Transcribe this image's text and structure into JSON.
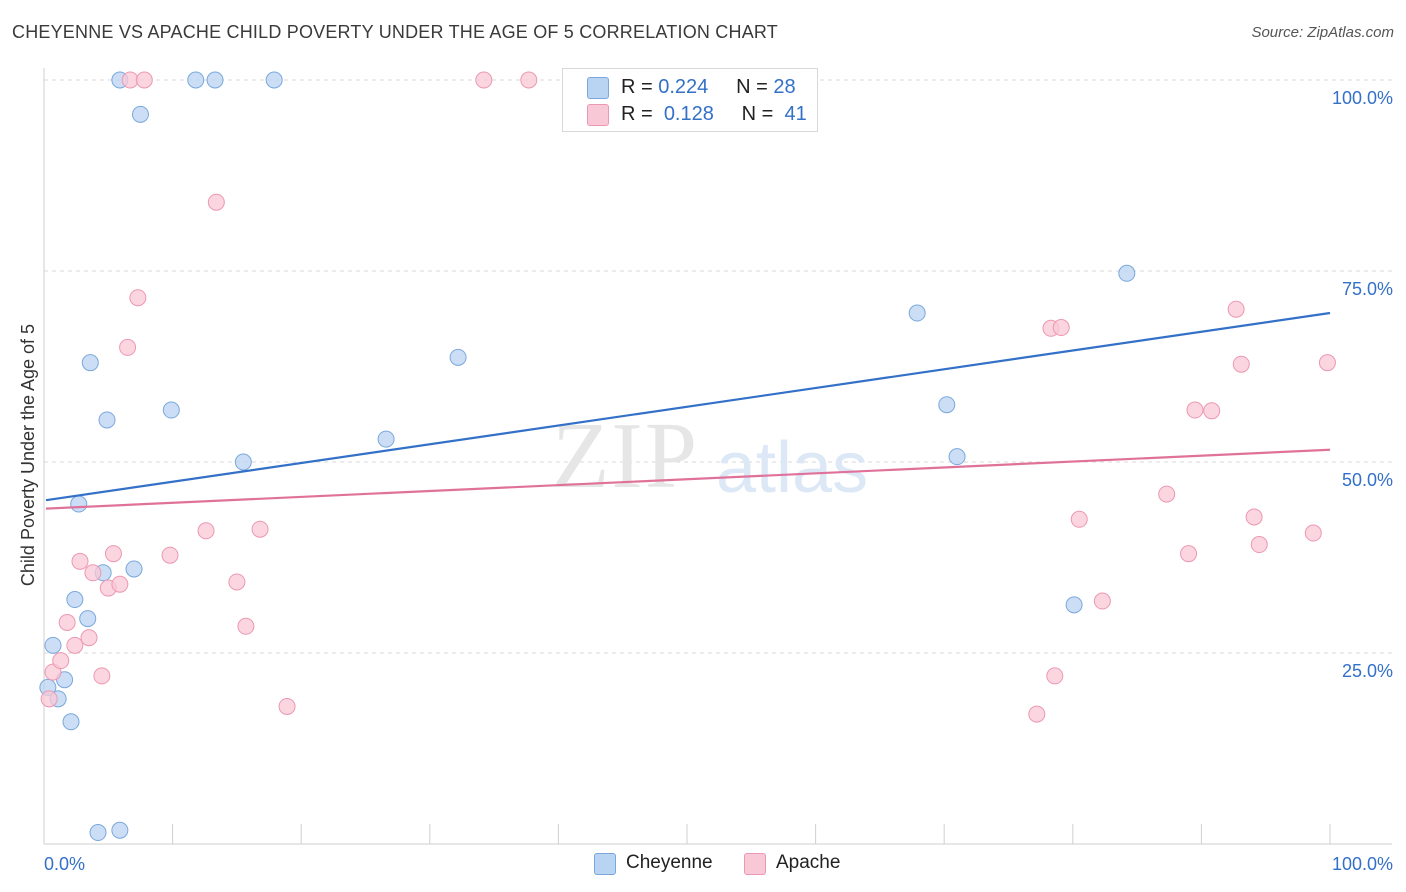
{
  "title": "CHEYENNE VS APACHE CHILD POVERTY UNDER THE AGE OF 5 CORRELATION CHART",
  "source": "Source: ZipAtlas.com",
  "watermark": {
    "zip": "ZIP",
    "atlas": "atlas"
  },
  "legend": {
    "rows": [
      {
        "r_label": "R =",
        "r_value": "0.224",
        "n_label": "N =",
        "n_value": "28"
      },
      {
        "r_label": "R =",
        "r_value": "0.128",
        "n_label": "N =",
        "n_value": "41"
      }
    ]
  },
  "bottom_legend": {
    "cheyenne": "Cheyenne",
    "apache": "Apache"
  },
  "colors": {
    "cheyenne_fill": "#b9d3f2",
    "cheyenne_stroke": "#7aa8dc",
    "cheyenne_line": "#3370c8",
    "apache_fill": "#f9c8d6",
    "apache_stroke": "#ec98b2",
    "apache_line": "#e0729a",
    "tick_label": "#3370c8",
    "grid": "#d9d9d9"
  },
  "chart_data": {
    "type": "scatter",
    "title": "CHEYENNE VS APACHE CHILD POVERTY UNDER THE AGE OF 5 CORRELATION CHART",
    "xlabel": "",
    "ylabel": "Child Poverty Under the Age of 5",
    "xlim": [
      0,
      100
    ],
    "ylim": [
      0,
      100
    ],
    "x_tick_labels": [
      "0.0%",
      "100.0%"
    ],
    "y_ticks": [
      25,
      50,
      75,
      100
    ],
    "y_tick_labels": [
      "25.0%",
      "50.0%",
      "75.0%",
      "100.0%"
    ],
    "series": [
      {
        "name": "Cheyenne",
        "r": 0.224,
        "n": 28,
        "trend": {
          "x": [
            0,
            100
          ],
          "y": [
            45.0,
            69.5
          ]
        },
        "points": [
          {
            "x": 0.3,
            "y": 20.5
          },
          {
            "x": 0.7,
            "y": 26.0
          },
          {
            "x": 1.1,
            "y": 19.0
          },
          {
            "x": 1.6,
            "y": 21.5
          },
          {
            "x": 2.1,
            "y": 16.0
          },
          {
            "x": 2.4,
            "y": 32.0
          },
          {
            "x": 2.7,
            "y": 44.5
          },
          {
            "x": 3.4,
            "y": 29.5
          },
          {
            "x": 3.6,
            "y": 63.0
          },
          {
            "x": 4.2,
            "y": 1.5
          },
          {
            "x": 4.6,
            "y": 35.5
          },
          {
            "x": 4.9,
            "y": 55.5
          },
          {
            "x": 5.9,
            "y": 1.8
          },
          {
            "x": 5.9,
            "y": 100.0
          },
          {
            "x": 7.0,
            "y": 36.0
          },
          {
            "x": 7.5,
            "y": 95.5
          },
          {
            "x": 9.9,
            "y": 56.8
          },
          {
            "x": 11.8,
            "y": 100.0
          },
          {
            "x": 13.3,
            "y": 100.0
          },
          {
            "x": 15.5,
            "y": 50.0
          },
          {
            "x": 17.9,
            "y": 100.0
          },
          {
            "x": 26.6,
            "y": 53.0
          },
          {
            "x": 32.2,
            "y": 63.7
          },
          {
            "x": 67.9,
            "y": 69.5
          },
          {
            "x": 70.2,
            "y": 57.5
          },
          {
            "x": 71.0,
            "y": 50.7
          },
          {
            "x": 80.1,
            "y": 31.3
          },
          {
            "x": 84.2,
            "y": 74.7
          }
        ]
      },
      {
        "name": "Apache",
        "r": 0.128,
        "n": 41,
        "trend": {
          "x": [
            0,
            100
          ],
          "y": [
            43.9,
            51.6
          ]
        },
        "points": [
          {
            "x": 0.4,
            "y": 19.0
          },
          {
            "x": 0.7,
            "y": 22.5
          },
          {
            "x": 1.3,
            "y": 24.0
          },
          {
            "x": 1.8,
            "y": 29.0
          },
          {
            "x": 2.4,
            "y": 26.0
          },
          {
            "x": 2.8,
            "y": 37.0
          },
          {
            "x": 3.5,
            "y": 27.0
          },
          {
            "x": 3.8,
            "y": 35.5
          },
          {
            "x": 4.5,
            "y": 22.0
          },
          {
            "x": 5.0,
            "y": 33.5
          },
          {
            "x": 5.4,
            "y": 38.0
          },
          {
            "x": 5.9,
            "y": 34.0
          },
          {
            "x": 6.5,
            "y": 65.0
          },
          {
            "x": 6.7,
            "y": 100.0
          },
          {
            "x": 7.3,
            "y": 71.5
          },
          {
            "x": 7.8,
            "y": 100.0
          },
          {
            "x": 9.8,
            "y": 37.8
          },
          {
            "x": 12.6,
            "y": 41.0
          },
          {
            "x": 13.4,
            "y": 84.0
          },
          {
            "x": 15.0,
            "y": 34.3
          },
          {
            "x": 15.7,
            "y": 28.5
          },
          {
            "x": 16.8,
            "y": 41.2
          },
          {
            "x": 18.9,
            "y": 18.0
          },
          {
            "x": 34.2,
            "y": 100.0
          },
          {
            "x": 37.7,
            "y": 100.0
          },
          {
            "x": 77.2,
            "y": 17.0
          },
          {
            "x": 78.3,
            "y": 67.5
          },
          {
            "x": 78.6,
            "y": 22.0
          },
          {
            "x": 79.1,
            "y": 67.6
          },
          {
            "x": 80.5,
            "y": 42.5
          },
          {
            "x": 82.3,
            "y": 31.8
          },
          {
            "x": 87.3,
            "y": 45.8
          },
          {
            "x": 89.0,
            "y": 38.0
          },
          {
            "x": 89.5,
            "y": 56.8
          },
          {
            "x": 90.8,
            "y": 56.7
          },
          {
            "x": 92.7,
            "y": 70.0
          },
          {
            "x": 93.1,
            "y": 62.8
          },
          {
            "x": 94.1,
            "y": 42.8
          },
          {
            "x": 94.5,
            "y": 39.2
          },
          {
            "x": 98.7,
            "y": 40.7
          },
          {
            "x": 99.8,
            "y": 63.0
          }
        ]
      }
    ]
  }
}
